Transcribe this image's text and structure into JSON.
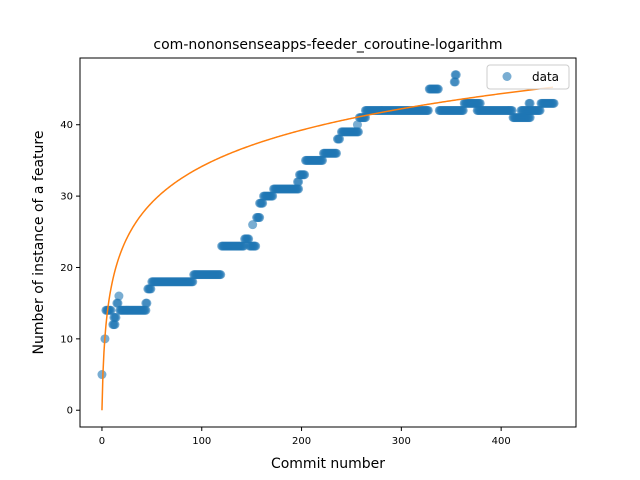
{
  "chart_data": {
    "type": "scatter",
    "title": "com-nononsenseapps-feeder_coroutine-logarithm",
    "xlabel": "Commit number",
    "ylabel": "Number of instance of a feature",
    "xlim": [
      -22,
      475
    ],
    "ylim": [
      -2.35,
      49.35
    ],
    "x_ticks": [
      0,
      100,
      200,
      300,
      400
    ],
    "y_ticks": [
      0,
      10,
      20,
      30,
      40
    ],
    "legend": {
      "position": "top-right",
      "entries": [
        "data"
      ]
    },
    "colors": {
      "data": "#1f77b4",
      "fit": "#ff7f0e"
    },
    "series": [
      {
        "name": "data",
        "kind": "scatter",
        "steps": [
          [
            0,
            1,
            5
          ],
          [
            3,
            4,
            10
          ],
          [
            4,
            10,
            14
          ],
          [
            11,
            14,
            12
          ],
          [
            12,
            15,
            13
          ],
          [
            15,
            17,
            15
          ],
          [
            17,
            18,
            16
          ],
          [
            19,
            19,
            17
          ],
          [
            18,
            45,
            14
          ],
          [
            44,
            46,
            15
          ],
          [
            46,
            50,
            17
          ],
          [
            50,
            92,
            18
          ],
          [
            92,
            120,
            19
          ],
          [
            120,
            143,
            23
          ],
          [
            143,
            148,
            24
          ],
          [
            148,
            155,
            23
          ],
          [
            151,
            152,
            26
          ],
          [
            155,
            159,
            27
          ],
          [
            158,
            162,
            29
          ],
          [
            162,
            172,
            30
          ],
          [
            172,
            198,
            31
          ],
          [
            196,
            198,
            32
          ],
          [
            198,
            204,
            33
          ],
          [
            204,
            222,
            35
          ],
          [
            222,
            236,
            36
          ],
          [
            236,
            239,
            38
          ],
          [
            240,
            258,
            39
          ],
          [
            256,
            257,
            40
          ],
          [
            258,
            265,
            41
          ],
          [
            264,
            328,
            42
          ],
          [
            328,
            338,
            45
          ],
          [
            338,
            355,
            42
          ],
          [
            353,
            355,
            46
          ],
          [
            354,
            356,
            47
          ],
          [
            355,
            363,
            42
          ],
          [
            363,
            380,
            43
          ],
          [
            376,
            412,
            42
          ],
          [
            412,
            430,
            41
          ],
          [
            420,
            440,
            42
          ],
          [
            428,
            430,
            43
          ],
          [
            440,
            454,
            43
          ]
        ]
      },
      {
        "name": "",
        "kind": "line",
        "function": "log",
        "a": 7.4,
        "b": 1,
        "x_range": [
          0,
          452
        ]
      }
    ]
  }
}
